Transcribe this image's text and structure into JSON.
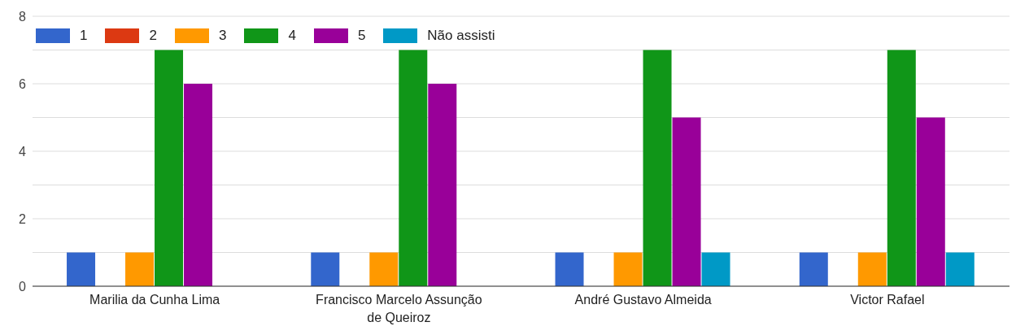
{
  "chart_data": {
    "type": "bar",
    "categories": [
      "Marilia da Cunha Lima",
      "Francisco Marcelo Assunção de Queiroz",
      "André Gustavo Almeida",
      "Victor Rafael"
    ],
    "series": [
      {
        "name": "1",
        "color": "#3366cc",
        "values": [
          1,
          1,
          1,
          1
        ]
      },
      {
        "name": "2",
        "color": "#dc3912",
        "values": [
          0,
          0,
          0,
          0
        ]
      },
      {
        "name": "3",
        "color": "#ff9900",
        "values": [
          1,
          1,
          1,
          1
        ]
      },
      {
        "name": "4",
        "color": "#109618",
        "values": [
          7,
          7,
          7,
          7
        ]
      },
      {
        "name": "5",
        "color": "#990099",
        "values": [
          6,
          6,
          5,
          5
        ]
      },
      {
        "name": "Não assisti",
        "color": "#0099c6",
        "values": [
          0,
          0,
          1,
          1
        ]
      }
    ],
    "ylim": [
      0,
      8
    ],
    "yticks": [
      0,
      {
        "value": 1,
        "label": null
      },
      2,
      {
        "value": 3,
        "label": null
      },
      4,
      {
        "value": 5,
        "label": null
      },
      6,
      {
        "value": 7,
        "label": null
      },
      8
    ],
    "grid": "y",
    "legend": "top left"
  }
}
